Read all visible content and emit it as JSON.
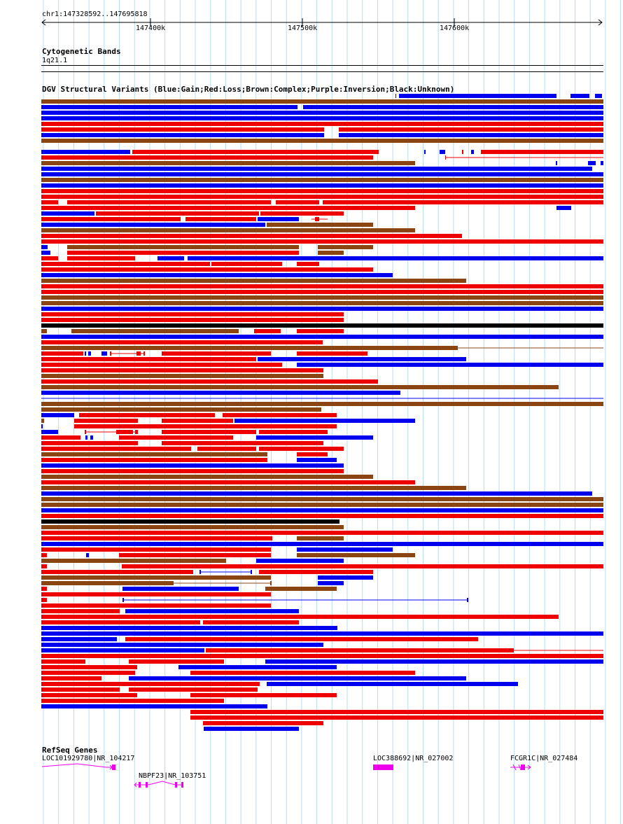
{
  "ruler": {
    "range_label": "chr1:147328592..147695818",
    "ticks": [
      "147400k",
      "147500k",
      "147600k"
    ]
  },
  "tracks": {
    "cytoband_title": "Cytogenetic Bands",
    "cytoband_label": "1q21.1",
    "dgv_title": "DGV Structural Variants (Blue:Gain;Red:Loss;Brown:Complex;Purple:Inversion;Black:Unknown)",
    "refseq_title": "RefSeq Genes"
  },
  "genes": [
    {
      "label": "LOC101929780|NR_104217"
    },
    {
      "label": "NBPF23|NR_103751"
    },
    {
      "label": "LOC388692|NR_027002"
    },
    {
      "label": "FCGR1C|NR_027484"
    }
  ],
  "colors": {
    "gain": "#0000ee",
    "loss": "#ee0000",
    "complex": "#8b4513",
    "unknown": "#000000",
    "gene": "#ee00ee",
    "grid": "#b8dcf0"
  }
}
